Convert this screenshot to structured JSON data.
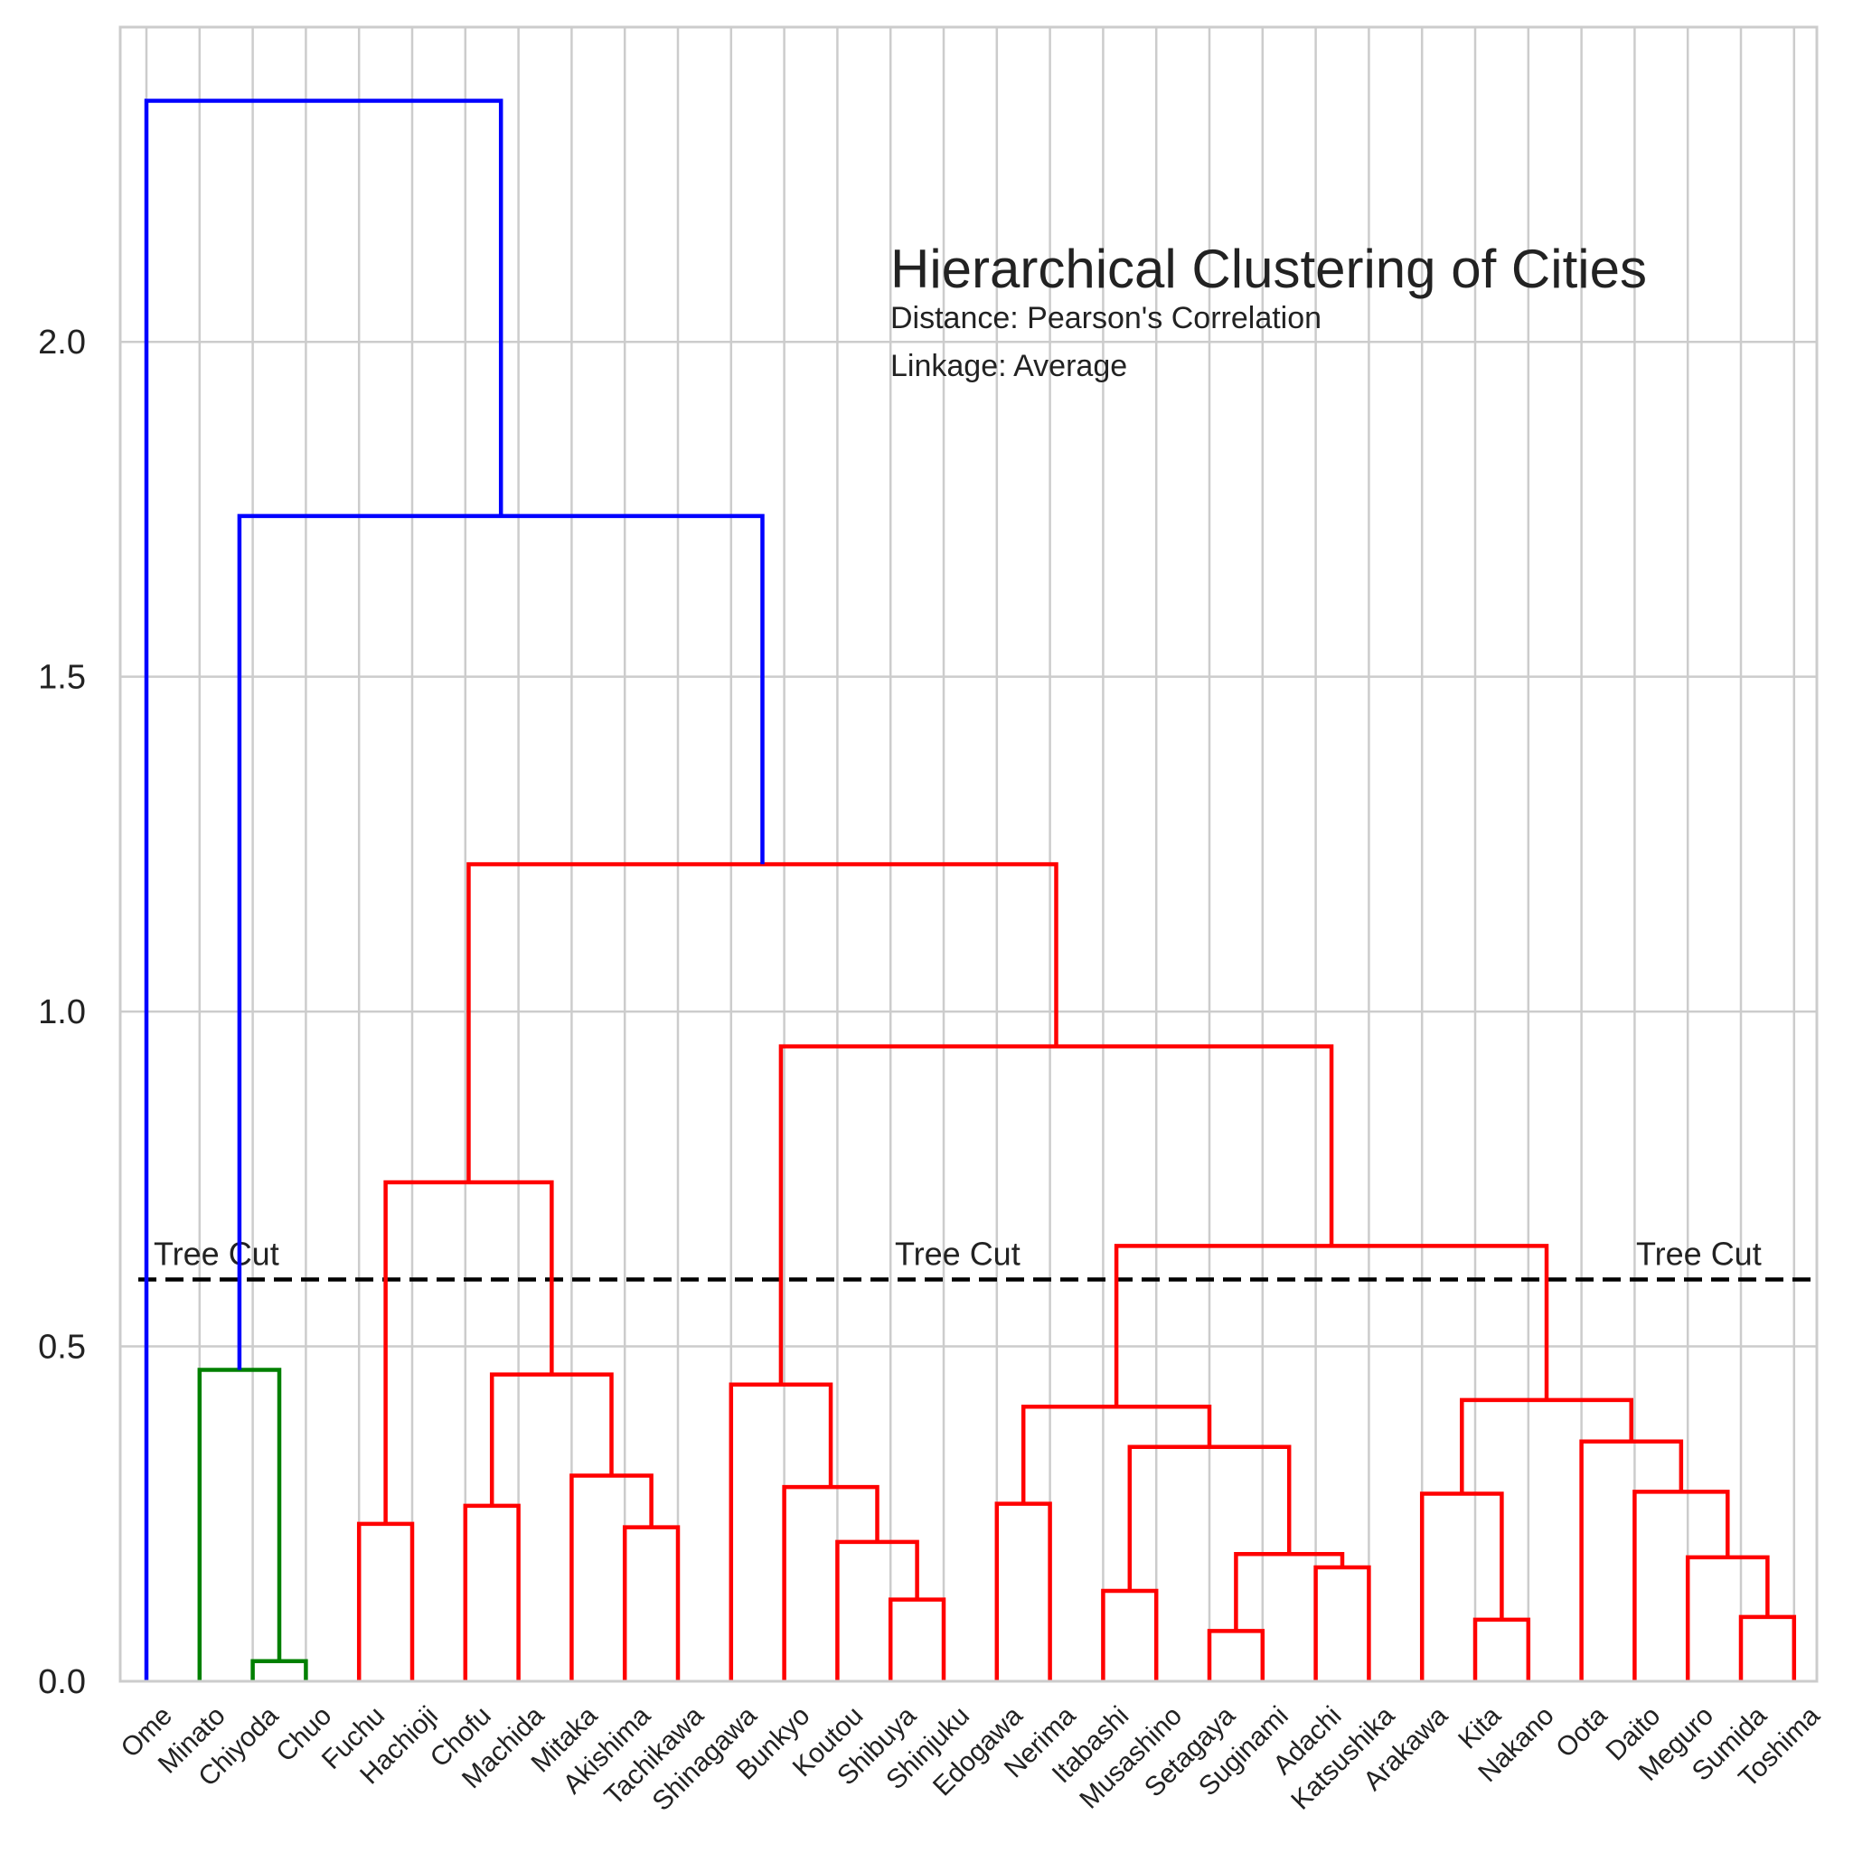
{
  "chart_data": {
    "type": "dendrogram",
    "title": "Hierarchical Clustering of Cities",
    "subtitle_lines": [
      "Distance: Pearson's Correlation",
      "Linkage: Average"
    ],
    "xlabel": "",
    "ylabel": "",
    "ylim": [
      0,
      2.47
    ],
    "yticks": [
      0.0,
      0.5,
      1.0,
      1.5,
      2.0
    ],
    "ytick_labels": [
      "0.0",
      "0.5",
      "1.0",
      "1.5",
      "2.0"
    ],
    "grid": true,
    "leaves": [
      "Ome",
      "Minato",
      "Chiyoda",
      "Chuo",
      "Fuchu",
      "Hachioji",
      "Chofu",
      "Machida",
      "Mitaka",
      "Akishima",
      "Tachikawa",
      "Shinagawa",
      "Bunkyo",
      "Koutou",
      "Shibuya",
      "Shinjuku",
      "Edogawa",
      "Nerima",
      "Itabashi",
      "Musashino",
      "Setagaya",
      "Suginami",
      "Adachi",
      "Katsushika",
      "Arakawa",
      "Kita",
      "Nakano",
      "Oota",
      "Daito",
      "Meguro",
      "Sumida",
      "Toshima"
    ],
    "merges": [
      {
        "children": [
          "Chiyoda",
          "Chuo"
        ],
        "height": 0.03,
        "color": "#008000"
      },
      {
        "children": [
          "Minato",
          "Chiyoda+Chuo"
        ],
        "height": 0.465,
        "color": "#008000"
      },
      {
        "children": [
          "Fuchu",
          "Hachioji"
        ],
        "height": 0.235,
        "color": "#ff0000"
      },
      {
        "children": [
          "Chofu",
          "Machida"
        ],
        "height": 0.262,
        "color": "#ff0000"
      },
      {
        "children": [
          "Akishima",
          "Tachikawa"
        ],
        "height": 0.23,
        "color": "#ff0000"
      },
      {
        "children": [
          "Mitaka",
          "Akishima+Tachikawa"
        ],
        "height": 0.307,
        "color": "#ff0000"
      },
      {
        "children": [
          "Chofu+Machida",
          "Mitaka+Akishima+Tachikawa"
        ],
        "height": 0.458,
        "color": "#ff0000"
      },
      {
        "children": [
          "Fuchu+Hachioji",
          "Chofu..Tachikawa"
        ],
        "height": 0.745,
        "color": "#ff0000"
      },
      {
        "children": [
          "Shibuya",
          "Shinjuku"
        ],
        "height": 0.122,
        "color": "#ff0000"
      },
      {
        "children": [
          "Koutou",
          "Shibuya+Shinjuku"
        ],
        "height": 0.208,
        "color": "#ff0000"
      },
      {
        "children": [
          "Bunkyo",
          "Koutou+Shibuya+Shinjuku"
        ],
        "height": 0.29,
        "color": "#ff0000"
      },
      {
        "children": [
          "Shinagawa",
          "Bunkyo..Shinjuku"
        ],
        "height": 0.443,
        "color": "#ff0000"
      },
      {
        "children": [
          "Edogawa",
          "Nerima"
        ],
        "height": 0.265,
        "color": "#ff0000"
      },
      {
        "children": [
          "Itabashi",
          "Musashino"
        ],
        "height": 0.135,
        "color": "#ff0000"
      },
      {
        "children": [
          "Setagaya",
          "Suginami"
        ],
        "height": 0.075,
        "color": "#ff0000"
      },
      {
        "children": [
          "Adachi",
          "Katsushika"
        ],
        "height": 0.17,
        "color": "#ff0000"
      },
      {
        "children": [
          "Setagaya+Suginami",
          "Adachi+Katsushika"
        ],
        "height": 0.19,
        "color": "#ff0000"
      },
      {
        "children": [
          "Itabashi+Musashino",
          "Setagaya..Katsushika"
        ],
        "height": 0.35,
        "color": "#ff0000"
      },
      {
        "children": [
          "Edogawa+Nerima",
          "Itabashi..Katsushika"
        ],
        "height": 0.41,
        "color": "#ff0000"
      },
      {
        "children": [
          "Kita",
          "Nakano"
        ],
        "height": 0.092,
        "color": "#ff0000"
      },
      {
        "children": [
          "Arakawa",
          "Kita+Nakano"
        ],
        "height": 0.28,
        "color": "#ff0000"
      },
      {
        "children": [
          "Sumida",
          "Toshima"
        ],
        "height": 0.096,
        "color": "#ff0000"
      },
      {
        "children": [
          "Meguro",
          "Sumida+Toshima"
        ],
        "height": 0.185,
        "color": "#ff0000"
      },
      {
        "children": [
          "Daito",
          "Meguro+Sumida+Toshima"
        ],
        "height": 0.283,
        "color": "#ff0000"
      },
      {
        "children": [
          "Oota",
          "Daito..Toshima"
        ],
        "height": 0.358,
        "color": "#ff0000"
      },
      {
        "children": [
          "Arakawa+Kita+Nakano",
          "Oota..Toshima"
        ],
        "height": 0.42,
        "color": "#ff0000"
      },
      {
        "children": [
          "Edogawa..Katsushika",
          "Arakawa..Toshima"
        ],
        "height": 0.65,
        "color": "#ff0000"
      },
      {
        "children": [
          "Shinagawa..Shinjuku",
          "Edogawa..Toshima"
        ],
        "height": 0.948,
        "color": "#ff0000"
      },
      {
        "children": [
          "Fuchu..Tachikawa",
          "Shinagawa..Toshima"
        ],
        "height": 1.22,
        "color": "#ff0000"
      },
      {
        "children": [
          "Minato+Chiyoda+Chuo",
          "Fuchu..Toshima"
        ],
        "height": 1.74,
        "color": "#0000ff"
      },
      {
        "children": [
          "Ome",
          "Minato..Toshima"
        ],
        "height": 2.36,
        "color": "#0000ff"
      }
    ],
    "cut_line": {
      "height": 0.6,
      "style": "dashed",
      "color": "#000000",
      "label": "Tree Cut",
      "label_count": 3
    },
    "colors": {
      "cluster_green": "#008000",
      "cluster_red": "#ff0000",
      "above_threshold": "#0000ff",
      "grid": "#cccccc"
    }
  }
}
